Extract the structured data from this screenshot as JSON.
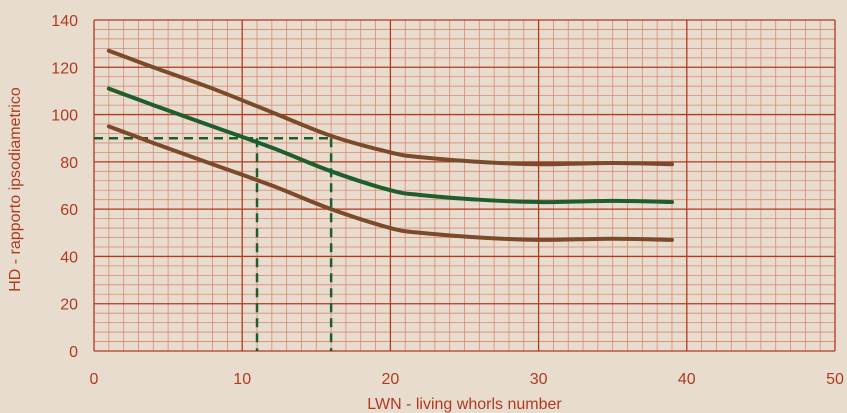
{
  "chart_data": {
    "type": "line",
    "title": "",
    "xlabel": "LWN - living whorls number",
    "ylabel": "HD - rapporto ipsodiametrico",
    "xlim": [
      0,
      50
    ],
    "ylim": [
      0,
      140
    ],
    "x_ticks": [
      0,
      10,
      20,
      30,
      40,
      50
    ],
    "y_ticks": [
      0,
      20,
      40,
      60,
      80,
      100,
      120,
      140
    ],
    "grid": true,
    "legend": "none",
    "series": [
      {
        "color": "#7a4a2a",
        "x": [
          1,
          4,
          8,
          12,
          16,
          20,
          22,
          26,
          30,
          35,
          39
        ],
        "y": [
          127,
          120,
          111,
          101,
          91,
          84,
          82,
          80,
          79,
          79.5,
          79
        ]
      },
      {
        "color": "#1e5e2e",
        "x": [
          1,
          4,
          8,
          12,
          16,
          20,
          22,
          26,
          30,
          35,
          39
        ],
        "y": [
          111,
          104,
          95,
          86,
          76,
          68,
          66,
          64,
          63,
          63.5,
          63
        ]
      },
      {
        "color": "#7a4a2a",
        "x": [
          1,
          4,
          8,
          12,
          16,
          20,
          22,
          26,
          30,
          35,
          39
        ],
        "y": [
          95,
          88,
          79,
          70,
          60,
          52,
          50,
          48,
          47,
          47.5,
          47
        ]
      }
    ],
    "reference_lines": {
      "color": "#1e5e2e",
      "horizontal_y": 90,
      "horizontal_x_range": [
        0,
        16
      ],
      "vertical_x": [
        11,
        16
      ],
      "vertical_top_y": 90
    }
  },
  "colors": {
    "background": "#e8dccf",
    "major_grid": "#b23a1f",
    "minor_grid": "#d98a73",
    "axis_text": "#b23a1f"
  }
}
